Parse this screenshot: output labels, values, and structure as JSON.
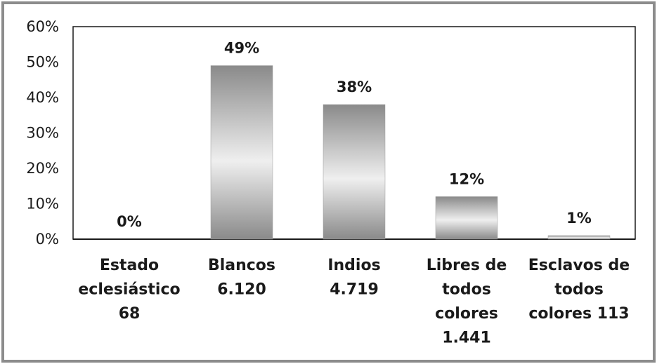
{
  "chart_data": {
    "type": "bar",
    "title": "",
    "xlabel": "",
    "ylabel": "",
    "ylim": [
      0,
      60
    ],
    "yticks": [
      "0%",
      "10%",
      "20%",
      "30%",
      "40%",
      "50%",
      "60%"
    ],
    "categories": [
      [
        "Estado",
        "eclesiástico",
        "68"
      ],
      [
        "Blancos",
        "6.120"
      ],
      [
        "Indios",
        "4.719"
      ],
      [
        "Libres de",
        "todos",
        "colores",
        "1.441"
      ],
      [
        "Esclavos de",
        "todos",
        "colores 113"
      ]
    ],
    "values": [
      0,
      49,
      38,
      12,
      1
    ],
    "data_labels": [
      "0%",
      "49%",
      "38%",
      "12%",
      "1%"
    ],
    "grid": false,
    "legend": "none"
  },
  "colors": {
    "frame": "#8c8c8c",
    "axis": "#1a1a1a",
    "bar_dark": "#8a8a8a",
    "bar_light": "#efefef"
  }
}
